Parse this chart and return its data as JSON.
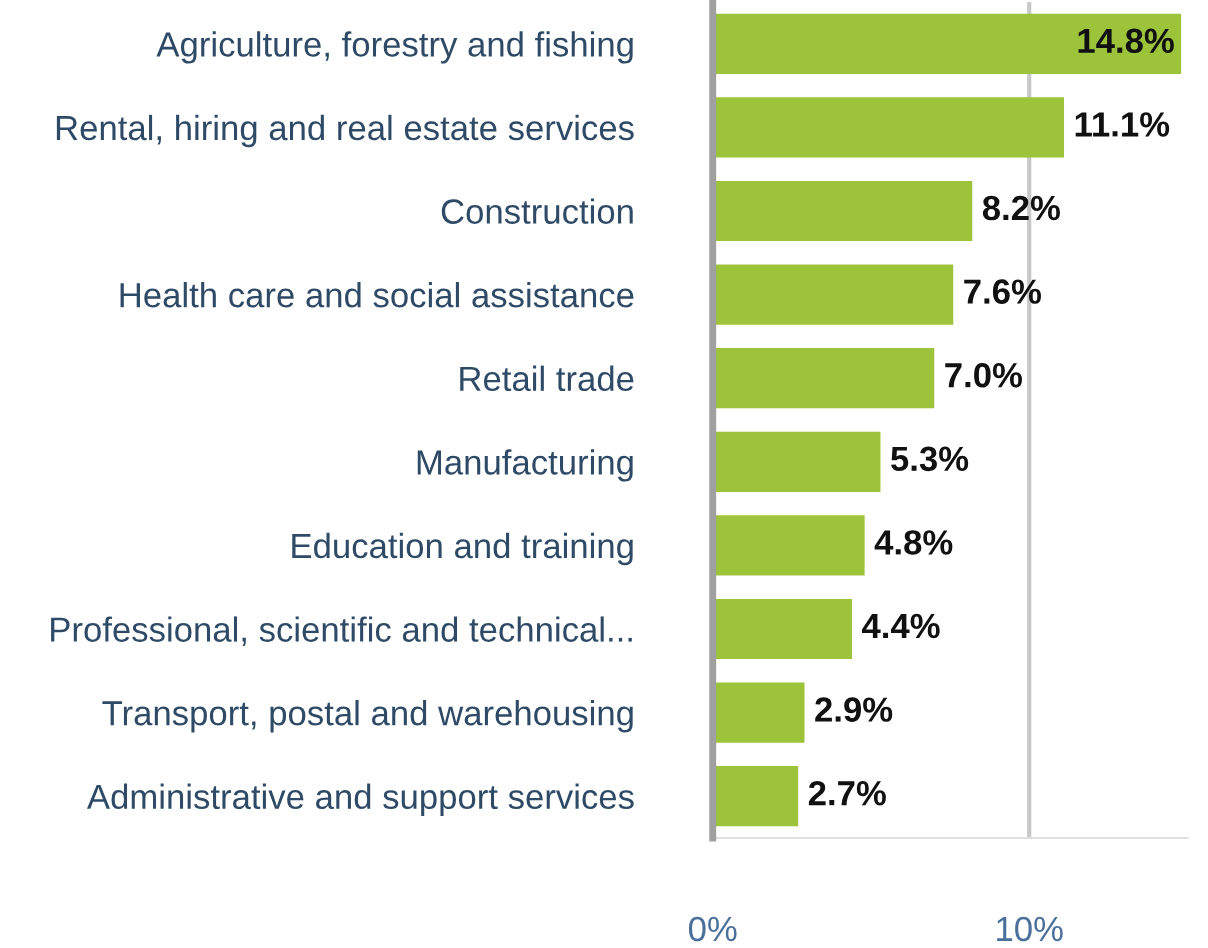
{
  "chart_data": {
    "type": "bar",
    "orientation": "horizontal",
    "categories": [
      "Agriculture, forestry and fishing",
      "Rental, hiring and real estate services",
      "Construction",
      "Health care and social assistance",
      "Retail trade",
      "Manufacturing",
      "Education and training",
      "Professional, scientific and technical...",
      "Transport, postal and warehousing",
      "Administrative and support services"
    ],
    "values": [
      14.8,
      11.1,
      8.2,
      7.6,
      7.0,
      5.3,
      4.8,
      4.4,
      2.9,
      2.7
    ],
    "value_labels": [
      "14.8%",
      "11.1%",
      "8.2%",
      "7.6%",
      "7.0%",
      "5.3%",
      "4.8%",
      "4.4%",
      "2.9%",
      "2.7%"
    ],
    "color": "#9dc33b",
    "xlim": [
      0,
      15
    ],
    "xticks": [
      {
        "value": 0,
        "label": "0%"
      },
      {
        "value": 10,
        "label": "10%"
      }
    ],
    "grid": "x"
  }
}
